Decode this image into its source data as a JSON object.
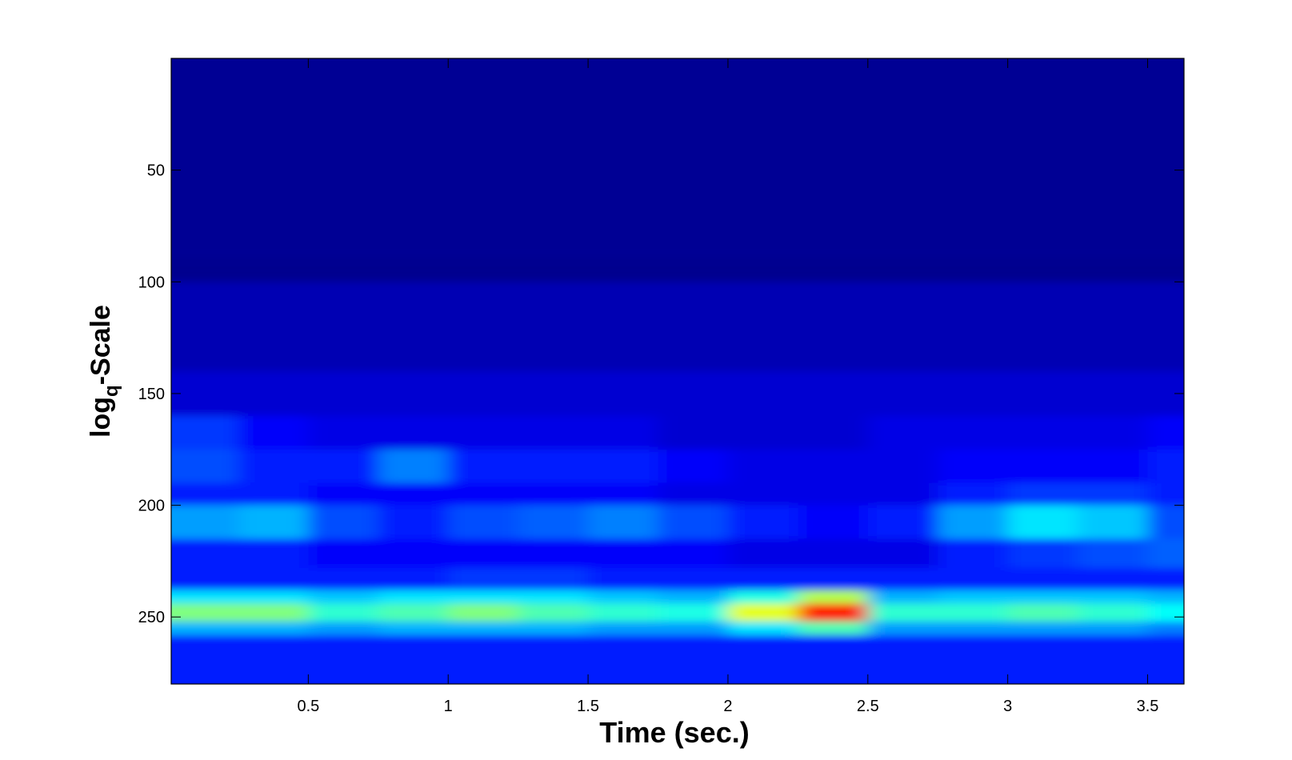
{
  "chart_data": {
    "type": "heatmap",
    "xlabel": "Time (sec.)",
    "ylabel": [
      "log",
      "q",
      "-Scale"
    ],
    "xlim": [
      0.01,
      3.63
    ],
    "ylim": [
      280,
      0
    ],
    "xticks": [
      0.5,
      1,
      1.5,
      2,
      2.5,
      3,
      3.5
    ],
    "yticks": [
      50,
      100,
      150,
      200,
      250
    ],
    "grid": false,
    "colormap": "jet",
    "zlim": [
      0,
      1
    ],
    "xbins": [
      0.01,
      0.25,
      0.5,
      0.75,
      1,
      1.25,
      1.5,
      1.75,
      2,
      2.25,
      2.5,
      2.75,
      3,
      3.25,
      3.5,
      3.63
    ],
    "ybins": [
      0,
      100,
      140,
      160,
      175,
      190,
      200,
      215,
      228,
      238,
      244,
      252,
      258,
      280
    ],
    "z": [
      [
        0.02,
        0.02,
        0.02,
        0.02,
        0.02,
        0.02,
        0.02,
        0.02,
        0.02,
        0.02,
        0.02,
        0.02,
        0.02,
        0.02,
        0.02
      ],
      [
        0.05,
        0.05,
        0.05,
        0.05,
        0.05,
        0.05,
        0.05,
        0.05,
        0.05,
        0.05,
        0.05,
        0.05,
        0.05,
        0.05,
        0.05
      ],
      [
        0.08,
        0.08,
        0.08,
        0.08,
        0.08,
        0.08,
        0.08,
        0.08,
        0.08,
        0.08,
        0.08,
        0.08,
        0.08,
        0.08,
        0.08
      ],
      [
        0.18,
        0.12,
        0.1,
        0.1,
        0.1,
        0.1,
        0.1,
        0.08,
        0.08,
        0.08,
        0.1,
        0.1,
        0.1,
        0.1,
        0.12
      ],
      [
        0.2,
        0.15,
        0.15,
        0.25,
        0.15,
        0.15,
        0.15,
        0.12,
        0.1,
        0.1,
        0.1,
        0.12,
        0.12,
        0.12,
        0.15
      ],
      [
        0.15,
        0.15,
        0.12,
        0.12,
        0.12,
        0.12,
        0.12,
        0.1,
        0.1,
        0.1,
        0.1,
        0.15,
        0.18,
        0.18,
        0.15
      ],
      [
        0.28,
        0.3,
        0.2,
        0.15,
        0.2,
        0.22,
        0.25,
        0.2,
        0.15,
        0.12,
        0.15,
        0.28,
        0.35,
        0.32,
        0.2
      ],
      [
        0.15,
        0.15,
        0.12,
        0.12,
        0.12,
        0.12,
        0.12,
        0.12,
        0.1,
        0.1,
        0.1,
        0.15,
        0.18,
        0.2,
        0.22
      ],
      [
        0.15,
        0.15,
        0.15,
        0.15,
        0.18,
        0.18,
        0.15,
        0.15,
        0.15,
        0.15,
        0.15,
        0.15,
        0.15,
        0.15,
        0.15
      ],
      [
        0.35,
        0.35,
        0.32,
        0.35,
        0.35,
        0.35,
        0.32,
        0.3,
        0.4,
        0.55,
        0.3,
        0.32,
        0.32,
        0.32,
        0.3
      ],
      [
        0.5,
        0.5,
        0.42,
        0.45,
        0.5,
        0.45,
        0.42,
        0.4,
        0.6,
        0.85,
        0.42,
        0.42,
        0.45,
        0.42,
        0.38
      ],
      [
        0.3,
        0.3,
        0.28,
        0.3,
        0.3,
        0.3,
        0.28,
        0.28,
        0.35,
        0.45,
        0.28,
        0.28,
        0.28,
        0.28,
        0.25
      ],
      [
        0.15,
        0.15,
        0.15,
        0.15,
        0.15,
        0.15,
        0.15,
        0.15,
        0.15,
        0.15,
        0.15,
        0.15,
        0.15,
        0.15,
        0.15
      ]
    ]
  }
}
